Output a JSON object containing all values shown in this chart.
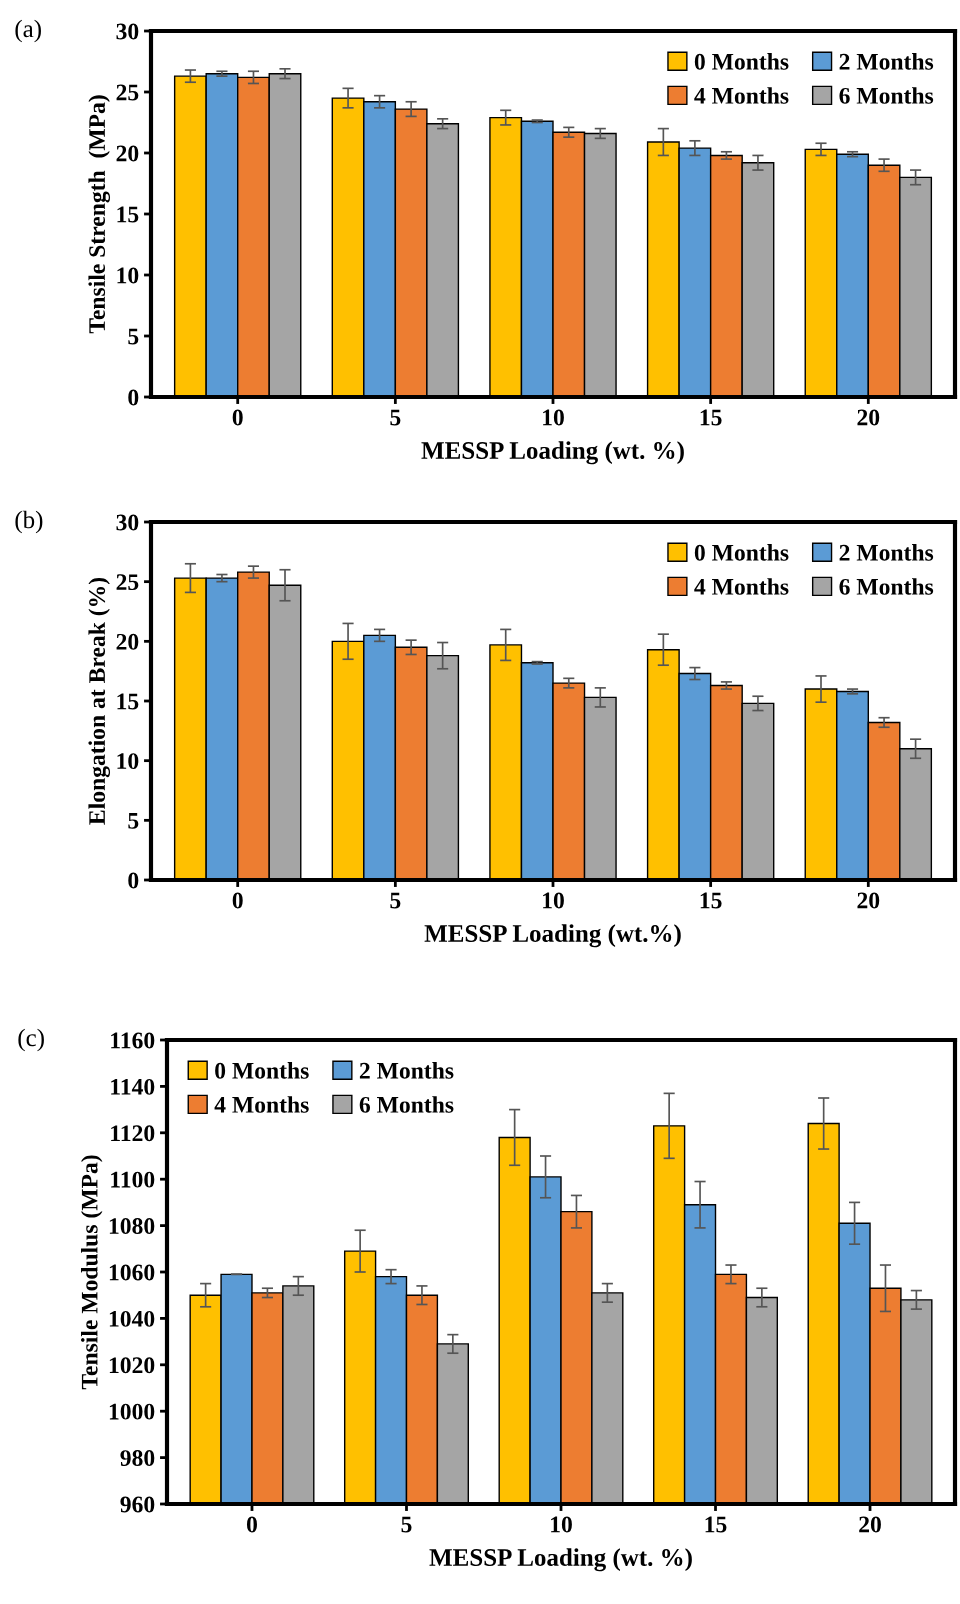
{
  "chart_data": [
    {
      "type": "bar",
      "title": "(a)",
      "xlabel": "MESSP Loading (wt. %)",
      "ylabel": "Tensile Strength  (MPa)",
      "categories": [
        "0",
        "5",
        "10",
        "15",
        "20"
      ],
      "ylim": [
        0,
        30
      ],
      "yticks": [
        0,
        5,
        10,
        15,
        20,
        25,
        30
      ],
      "grid": false,
      "legend": "top right",
      "series": [
        {
          "name": "0 Months",
          "color": "#ffc000",
          "values": [
            26.3,
            24.5,
            22.9,
            20.9,
            20.3
          ],
          "errors": [
            0.5,
            0.8,
            0.6,
            1.1,
            0.5
          ]
        },
        {
          "name": "2 Months",
          "color": "#5b9bd5",
          "values": [
            26.5,
            24.2,
            22.6,
            20.4,
            19.9
          ],
          "errors": [
            0.2,
            0.5,
            0.1,
            0.6,
            0.2
          ]
        },
        {
          "name": "4 Months",
          "color": "#ed7d31",
          "values": [
            26.2,
            23.6,
            21.7,
            19.8,
            19.0
          ],
          "errors": [
            0.5,
            0.6,
            0.4,
            0.3,
            0.5
          ]
        },
        {
          "name": "6 Months",
          "color": "#a5a5a5",
          "values": [
            26.5,
            22.4,
            21.6,
            19.2,
            18.0
          ],
          "errors": [
            0.4,
            0.4,
            0.4,
            0.6,
            0.6
          ]
        }
      ]
    },
    {
      "type": "bar",
      "title": "(b)",
      "xlabel": "MESSP Loading (wt.%)",
      "ylabel": "Elongation at Break (%)",
      "categories": [
        "0",
        "5",
        "10",
        "15",
        "20"
      ],
      "ylim": [
        0,
        30
      ],
      "yticks": [
        0,
        5,
        10,
        15,
        20,
        25,
        30
      ],
      "grid": false,
      "legend": "top right",
      "series": [
        {
          "name": "0 Months",
          "color": "#ffc000",
          "values": [
            25.3,
            20.0,
            19.7,
            19.3,
            16.0
          ],
          "errors": [
            1.2,
            1.5,
            1.3,
            1.3,
            1.1
          ]
        },
        {
          "name": "2 Months",
          "color": "#5b9bd5",
          "values": [
            25.3,
            20.5,
            18.2,
            17.3,
            15.8
          ],
          "errors": [
            0.3,
            0.5,
            0.1,
            0.5,
            0.2
          ]
        },
        {
          "name": "4 Months",
          "color": "#ed7d31",
          "values": [
            25.8,
            19.5,
            16.5,
            16.3,
            13.2
          ],
          "errors": [
            0.5,
            0.6,
            0.4,
            0.3,
            0.4
          ]
        },
        {
          "name": "6 Months",
          "color": "#a5a5a5",
          "values": [
            24.7,
            18.8,
            15.3,
            14.8,
            11.0
          ],
          "errors": [
            1.3,
            1.1,
            0.8,
            0.6,
            0.8
          ]
        }
      ]
    },
    {
      "type": "bar",
      "title": "(c)",
      "xlabel": "MESSP Loading (wt. %)",
      "ylabel": "Tensile Modulus (MPa)",
      "categories": [
        "0",
        "5",
        "10",
        "15",
        "20"
      ],
      "ylim": [
        960,
        1160
      ],
      "yticks": [
        960,
        980,
        1000,
        1020,
        1040,
        1060,
        1080,
        1100,
        1120,
        1140,
        1160
      ],
      "grid": false,
      "legend": "top left",
      "series": [
        {
          "name": "0 Months",
          "color": "#ffc000",
          "values": [
            1050,
            1069,
            1118,
            1123,
            1124
          ],
          "errors": [
            5,
            9,
            12,
            14,
            11
          ]
        },
        {
          "name": "2 Months",
          "color": "#5b9bd5",
          "values": [
            1059,
            1058,
            1101,
            1089,
            1081
          ],
          "errors": [
            0,
            3,
            9,
            10,
            9
          ]
        },
        {
          "name": "4 Months",
          "color": "#ed7d31",
          "values": [
            1051,
            1050,
            1086,
            1059,
            1053
          ],
          "errors": [
            2,
            4,
            7,
            4,
            10
          ]
        },
        {
          "name": "6 Months",
          "color": "#a5a5a5",
          "values": [
            1054,
            1029,
            1051,
            1049,
            1048
          ],
          "errors": [
            4,
            4,
            4,
            4,
            4
          ]
        }
      ]
    }
  ]
}
